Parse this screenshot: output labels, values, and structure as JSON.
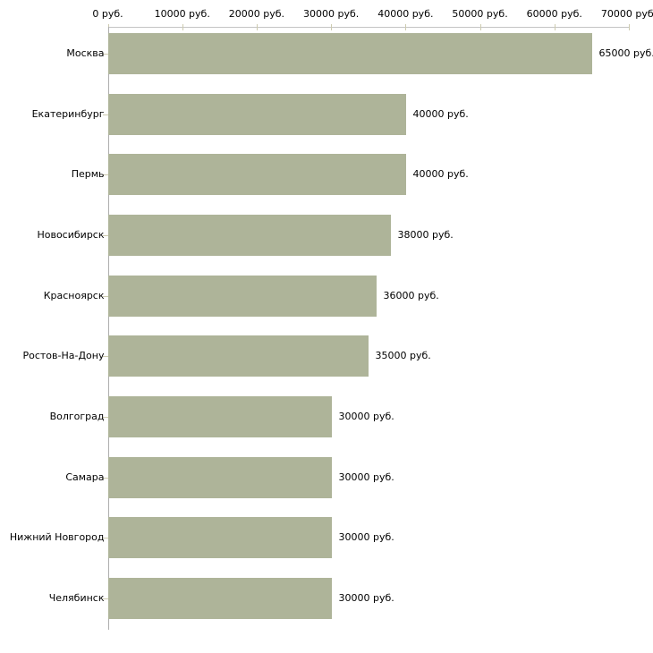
{
  "chart_data": {
    "type": "bar",
    "orientation": "horizontal",
    "title": "",
    "xlabel": "",
    "ylabel": "",
    "categories": [
      "Москва",
      "Екатеринбург",
      "Пермь",
      "Новосибирск",
      "Красноярск",
      "Ростов-На-Дону",
      "Волгоград",
      "Самара",
      "Нижний Новгород",
      "Челябинск"
    ],
    "values": [
      65000,
      40000,
      40000,
      38000,
      36000,
      35000,
      30000,
      30000,
      30000,
      30000
    ],
    "value_labels": [
      "65000 руб.",
      "40000 руб.",
      "40000 руб.",
      "38000 руб.",
      "36000 руб.",
      "35000 руб.",
      "30000 руб.",
      "30000 руб.",
      "30000 руб.",
      "30000 руб."
    ],
    "x_axis": {
      "position": "top",
      "xlim": [
        0,
        70000
      ],
      "ticks": [
        0,
        10000,
        20000,
        30000,
        40000,
        50000,
        60000,
        70000
      ],
      "tick_labels": [
        "0 руб.",
        "10000 руб.",
        "20000 руб.",
        "30000 руб.",
        "40000 руб.",
        "50000 руб.",
        "60000 руб.",
        "70000 руб."
      ]
    },
    "grid": false,
    "legend": false,
    "colors": {
      "background": "#ffffff",
      "bar_fill": "#aeb499",
      "x_axis_line": "#c3c3c3",
      "y_axis_line": "#adadad",
      "tick_mark": "#cdcbb0",
      "label_text": "#000000"
    }
  }
}
